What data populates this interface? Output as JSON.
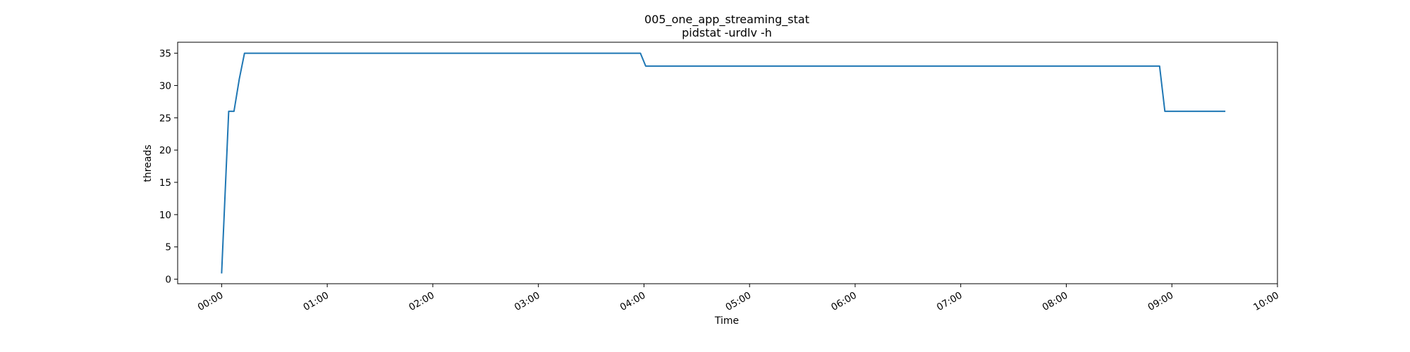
{
  "chart_data": {
    "type": "line",
    "title": "005_one_app_streaming_stat",
    "subtitle": "pidstat -urdlv -h",
    "xlabel": "Time",
    "ylabel": "threads",
    "xlim": [
      "-00:25",
      "10:00"
    ],
    "ylim": [
      -0.7,
      36.7
    ],
    "grid": false,
    "x_ticks": [
      "00:00",
      "01:00",
      "02:00",
      "03:00",
      "04:00",
      "05:00",
      "06:00",
      "07:00",
      "08:00",
      "09:00",
      "10:00"
    ],
    "y_ticks": [
      0,
      5,
      10,
      15,
      20,
      25,
      30,
      35
    ],
    "series": [
      {
        "color": "#1f77b4",
        "points": [
          {
            "x": "00:00",
            "y": 1
          },
          {
            "x": "00:04",
            "y": 26
          },
          {
            "x": "00:07",
            "y": 26
          },
          {
            "x": "00:10",
            "y": 31
          },
          {
            "x": "00:13",
            "y": 35
          },
          {
            "x": "03:58",
            "y": 35
          },
          {
            "x": "04:01",
            "y": 33
          },
          {
            "x": "08:53",
            "y": 33
          },
          {
            "x": "08:56",
            "y": 26
          },
          {
            "x": "09:30",
            "y": 26
          }
        ]
      }
    ]
  }
}
